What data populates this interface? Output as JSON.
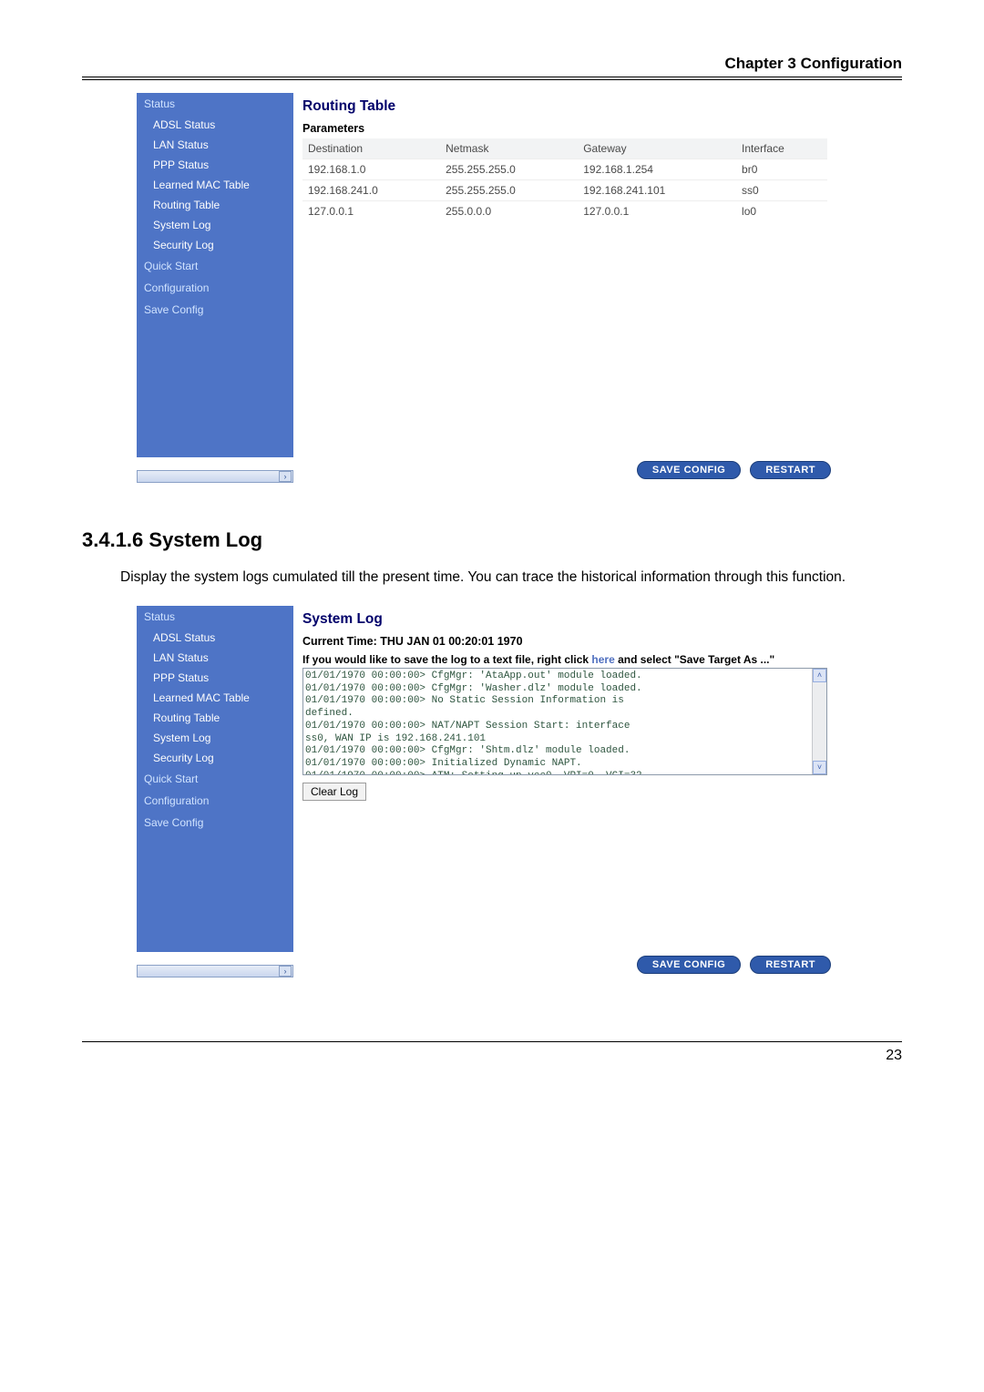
{
  "page_header": "Chapter 3 Configuration",
  "page_number": "23",
  "section_heading": "3.4.1.6 System Log",
  "section_body": "Display the system logs cumulated till the present time. You can trace the historical information through this function.",
  "sidebar": {
    "groups": [
      {
        "title": "Status",
        "items": [
          "ADSL Status",
          "LAN Status",
          "PPP Status",
          "Learned MAC Table",
          "Routing Table",
          "System Log",
          "Security Log"
        ]
      },
      {
        "title": "Quick Start",
        "items": []
      },
      {
        "title": "Configuration",
        "items": []
      },
      {
        "title": "Save Config",
        "items": []
      }
    ]
  },
  "routing_panel": {
    "title": "Routing Table",
    "subtitle": "Parameters",
    "columns": [
      "Destination",
      "Netmask",
      "Gateway",
      "Interface"
    ],
    "rows": [
      [
        "192.168.1.0",
        "255.255.255.0",
        "192.168.1.254",
        "br0"
      ],
      [
        "192.168.241.0",
        "255.255.255.0",
        "192.168.241.101",
        "ss0"
      ],
      [
        "127.0.0.1",
        "255.0.0.0",
        "127.0.0.1",
        "lo0"
      ]
    ]
  },
  "syslog_panel": {
    "title": "System Log",
    "current_time_label": "Current Time: THU JAN 01 00:20:01 1970",
    "save_note_prefix": "If you would like to save the log to a text file, right click ",
    "save_note_link": "here",
    "save_note_suffix": " and select \"Save Target As ...\"",
    "log_lines": "01/01/1970 00:00:00> CfgMgr: 'AtaApp.out' module loaded.\n01/01/1970 00:00:00> CfgMgr: 'Washer.dlz' module loaded.\n01/01/1970 00:00:00> No Static Session Information is\ndefined.\n01/01/1970 00:00:00> NAT/NAPT Session Start: interface\nss0, WAN IP is 192.168.241.101\n01/01/1970 00:00:00> CfgMgr: 'Shtm.dlz' module loaded.\n01/01/1970 00:00:00> Initialized Dynamic NAPT.\n01/01/1970 00:00:00> ATM: Setting up vcc0, VPI=0, VCI=32",
    "clear_label": "Clear Log"
  },
  "buttons": {
    "save": "SAVE CONFIG",
    "restart": "RESTART"
  }
}
